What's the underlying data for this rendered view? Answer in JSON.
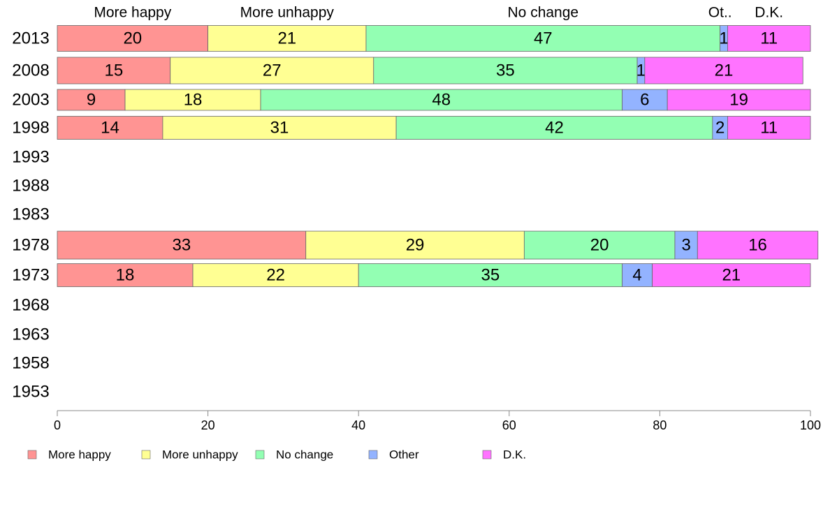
{
  "chart_data": {
    "type": "bar",
    "orientation": "horizontal",
    "stacked": true,
    "categories": [
      "2013",
      "2008",
      "2003",
      "1998",
      "1993",
      "1988",
      "1983",
      "1978",
      "1973",
      "1968",
      "1963",
      "1958",
      "1953"
    ],
    "series": [
      {
        "name": "More happy",
        "color": "#FF9493",
        "values": [
          20,
          15,
          9,
          14,
          null,
          null,
          null,
          33,
          18,
          null,
          null,
          null,
          null
        ]
      },
      {
        "name": "More unhappy",
        "color": "#FFFF93",
        "values": [
          21,
          27,
          18,
          31,
          null,
          null,
          null,
          29,
          22,
          null,
          null,
          null,
          null
        ]
      },
      {
        "name": "No change",
        "color": "#93FFB3",
        "values": [
          47,
          35,
          48,
          42,
          null,
          null,
          null,
          20,
          35,
          null,
          null,
          null,
          null
        ]
      },
      {
        "name": "Other",
        "color": "#93B3FF",
        "values": [
          1,
          1,
          6,
          2,
          null,
          null,
          null,
          3,
          4,
          null,
          null,
          null,
          null
        ]
      },
      {
        "name": "D.K.",
        "color": "#FF73FF",
        "values": [
          11,
          21,
          19,
          11,
          null,
          null,
          null,
          16,
          21,
          null,
          null,
          null,
          null
        ]
      }
    ],
    "top_labels": [
      "More happy",
      "More unhappy",
      "No change",
      "Ot..",
      "D.K."
    ],
    "xlim": [
      0,
      100
    ],
    "xticks": [
      0,
      20,
      40,
      60,
      80,
      100
    ],
    "legend_position": "bottom",
    "grid": false
  }
}
